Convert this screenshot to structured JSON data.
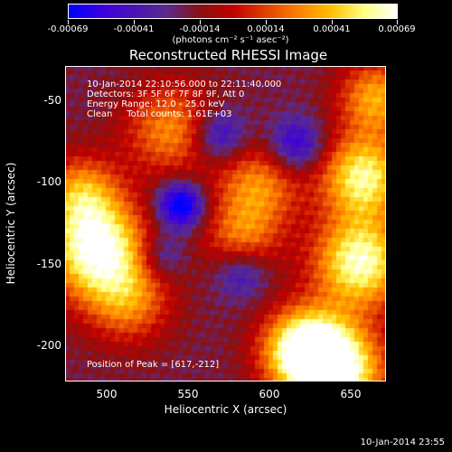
{
  "colorbar": {
    "tick_labels": [
      "-0.00069",
      "-0.00041",
      "-0.00014",
      "0.00014",
      "0.00041",
      "0.00069"
    ],
    "units": "(photons cm⁻² s⁻¹ asec⁻²)",
    "colormap": [
      "#0000ff",
      "#3b00e0",
      "#4a14b5",
      "#5a2a8c",
      "#8a1010",
      "#c00000",
      "#e04000",
      "#ff8000",
      "#ffc000",
      "#ffff80",
      "#ffffff"
    ],
    "range": [
      -0.00069,
      0.00069
    ]
  },
  "chart_data": {
    "type": "heatmap",
    "title": "Reconstructed RHESSI Image",
    "xlabel": "Heliocentric X (arcsec)",
    "ylabel": "Heliocentric Y (arcsec)",
    "xlim": [
      476,
      670
    ],
    "ylim": [
      -222,
      -31
    ],
    "xticks": [
      500,
      550,
      600,
      650
    ],
    "yticks": [
      -50,
      -100,
      -150,
      -200
    ],
    "xtick_labels": [
      "500",
      "550",
      "600",
      "650"
    ],
    "ytick_labels": [
      "-50",
      "-100",
      "-150",
      "-200"
    ],
    "peak": {
      "x": 617,
      "y": -212
    },
    "peak_label": "Position of Peak = [617,-212]",
    "info_lines": [
      "10-Jan-2014 22:10:56.000 to 22:11:40.000",
      "Detectors: 3F 5F 6F 7F 8F 9F, Att 0",
      "Energy Range: 12.0 - 25.0 keV",
      "Clean     Total counts: 1.61E+03"
    ]
  },
  "timestamp": "10-Jan-2014 23:55"
}
